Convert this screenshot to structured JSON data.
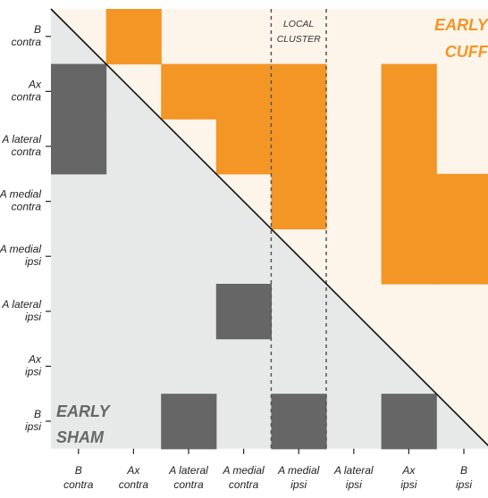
{
  "panel_mark": "",
  "colors": {
    "upper_bg": "#fdf4ea",
    "lower_bg": "#e7e9e9",
    "cuff": "#f39626",
    "sham": "#666666",
    "cuff_text": "#f39626",
    "sham_text": "#666666"
  },
  "rows": [
    [
      "B",
      "contra"
    ],
    [
      "Ax",
      "contra"
    ],
    [
      "A lateral",
      "contra"
    ],
    [
      "A medial",
      "contra"
    ],
    [
      "A medial",
      "ipsi"
    ],
    [
      "A lateral",
      "ipsi"
    ],
    [
      "Ax",
      "ipsi"
    ],
    [
      "B",
      "ipsi"
    ]
  ],
  "columns": [
    [
      "B",
      "contra"
    ],
    [
      "Ax",
      "contra"
    ],
    [
      "A lateral",
      "contra"
    ],
    [
      "A medial",
      "contra"
    ],
    [
      "A medial",
      "ipsi"
    ],
    [
      "A lateral",
      "ipsi"
    ],
    [
      "Ax",
      "ipsi"
    ],
    [
      "B",
      "ipsi"
    ]
  ],
  "upper_label": [
    "EARLY",
    "CUFF"
  ],
  "lower_label": [
    "EARLY",
    "SHAM"
  ],
  "cluster_label": [
    "LOCAL",
    "CLUSTER"
  ],
  "cuff_cells": [
    [
      0,
      1
    ],
    [
      1,
      2
    ],
    [
      1,
      3
    ],
    [
      1,
      4
    ],
    [
      1,
      6
    ],
    [
      2,
      3
    ],
    [
      2,
      4
    ],
    [
      2,
      6
    ],
    [
      3,
      4
    ],
    [
      3,
      6
    ],
    [
      3,
      7
    ],
    [
      4,
      6
    ],
    [
      4,
      7
    ]
  ],
  "sham_cells": [
    [
      1,
      0
    ],
    [
      2,
      0
    ],
    [
      5,
      3
    ],
    [
      7,
      2
    ],
    [
      7,
      4
    ],
    [
      7,
      6
    ]
  ]
}
